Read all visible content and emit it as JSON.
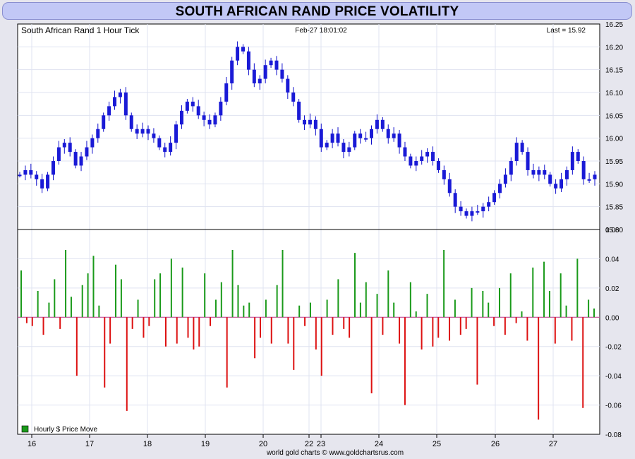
{
  "header": {
    "title": "SOUTH AFRICAN RAND PRICE VOLATILITY"
  },
  "chart_data": [
    {
      "type": "candlestick",
      "title": "South African Rand 1 Hour Tick",
      "timestamp": "Feb-27  18:01:02",
      "last_label": "Last = 15.92",
      "ylim": [
        15.8,
        16.25
      ],
      "yticks": [
        "15.80",
        "15.85",
        "15.90",
        "15.95",
        "16.00",
        "16.05",
        "16.10",
        "16.15",
        "16.20",
        "16.25"
      ],
      "grid": true,
      "closes": [
        15.92,
        15.93,
        15.92,
        15.91,
        15.89,
        15.92,
        15.95,
        15.98,
        15.99,
        15.97,
        15.94,
        15.96,
        15.98,
        16.0,
        16.02,
        16.05,
        16.07,
        16.09,
        16.1,
        16.05,
        16.02,
        16.01,
        16.02,
        16.01,
        16.0,
        15.98,
        15.97,
        15.99,
        16.03,
        16.06,
        16.08,
        16.07,
        16.05,
        16.04,
        16.03,
        16.05,
        16.08,
        16.12,
        16.17,
        16.2,
        16.19,
        16.15,
        16.12,
        16.13,
        16.16,
        16.17,
        16.15,
        16.13,
        16.1,
        16.08,
        16.04,
        16.03,
        16.04,
        16.02,
        15.98,
        15.99,
        16.01,
        15.99,
        15.97,
        15.98,
        16.01,
        16.0,
        16.0,
        16.02,
        16.04,
        16.02,
        16.0,
        16.01,
        15.98,
        15.96,
        15.94,
        15.95,
        15.96,
        15.97,
        15.95,
        15.93,
        15.91,
        15.88,
        15.85,
        15.84,
        15.83,
        15.84,
        15.84,
        15.85,
        15.86,
        15.88,
        15.9,
        15.92,
        15.95,
        15.99,
        15.97,
        15.93,
        15.92,
        15.93,
        15.92,
        15.9,
        15.89,
        15.91,
        15.93,
        15.97,
        15.95,
        15.91,
        15.91,
        15.92
      ],
      "lows": [
        15.88,
        15.83,
        15.82
      ],
      "highs": [
        16.22,
        15.99
      ],
      "series": [
        {
          "name": "Hourly $ Price Move",
          "color": "#1a9a1a",
          "neg_color": "#dd1111"
        }
      ],
      "lower_ylim": [
        -0.08,
        0.06
      ],
      "lower_yticks": [
        "-0.08",
        "-0.06",
        "-0.04",
        "-0.02",
        "0.00",
        "0.02",
        "0.04",
        "0.06"
      ],
      "moves": [
        0.032,
        -0.004,
        -0.006,
        0.018,
        -0.012,
        0.01,
        0.026,
        -0.008,
        0.046,
        0.014,
        -0.04,
        0.022,
        0.03,
        0.042,
        0.008,
        -0.048,
        -0.018,
        0.036,
        0.026,
        -0.064,
        -0.008,
        0.012,
        -0.014,
        -0.006,
        0.026,
        0.03,
        -0.02,
        0.04,
        -0.018,
        0.034,
        -0.014,
        -0.022,
        -0.02,
        0.03,
        -0.006,
        0.012,
        0.024,
        -0.048,
        0.046,
        0.022,
        0.008,
        0.01,
        -0.028,
        -0.014,
        0.012,
        -0.018,
        0.022,
        0.046,
        -0.018,
        -0.036,
        0.008,
        -0.006,
        0.01,
        -0.022,
        -0.04,
        0.012,
        -0.012,
        0.026,
        -0.008,
        -0.014,
        0.044,
        0.01,
        0.024,
        -0.052,
        0.016,
        -0.012,
        0.032,
        0.01,
        -0.018,
        -0.06,
        0.024,
        0.004,
        -0.022,
        0.016,
        -0.02,
        -0.014,
        0.046,
        -0.016,
        0.012,
        -0.012,
        -0.008,
        0.02,
        -0.046,
        0.018,
        0.01,
        -0.006,
        0.02,
        -0.012,
        0.03,
        -0.004,
        0.004,
        -0.016,
        0.034,
        -0.07,
        0.038,
        0.018,
        -0.018,
        0.03,
        0.008,
        -0.016,
        0.04,
        -0.062,
        0.012,
        0.006
      ],
      "x_ticks": [
        "16",
        "17",
        "18",
        "19",
        "20",
        "22",
        "23",
        "24",
        "25",
        "26",
        "27"
      ],
      "footer": "world gold charts © www.goldchartsrus.com"
    }
  ]
}
